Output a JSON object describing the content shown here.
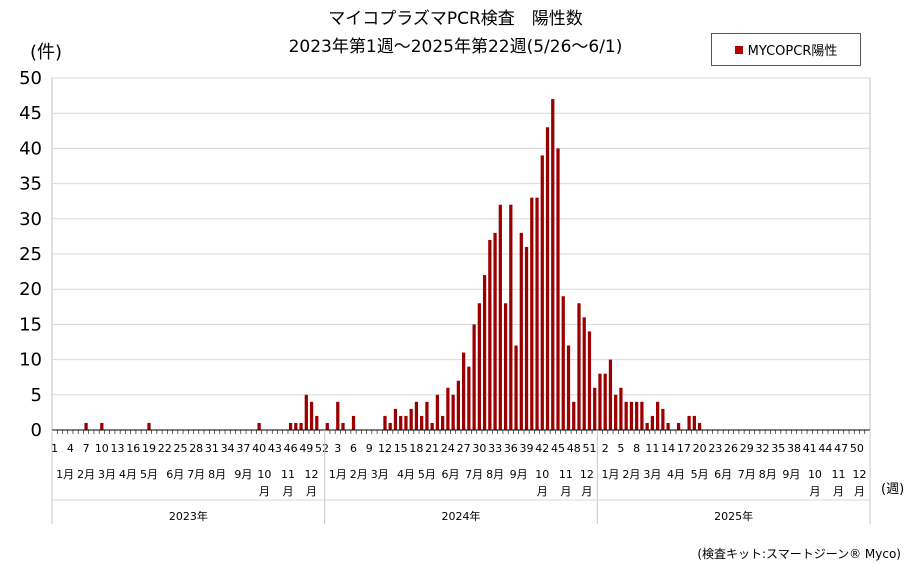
{
  "chart_data": {
    "type": "bar",
    "title": "マイコプラズマPCR検査　陽性数",
    "subtitle": "2023年第1週～2025年第22週(5/26～6/1)",
    "ylabel": "(件)",
    "xlabel": "(週)",
    "ylim": [
      0,
      50
    ],
    "yticks": [
      0,
      5,
      10,
      15,
      20,
      25,
      30,
      35,
      40,
      45,
      50
    ],
    "grid": true,
    "legend_position": "top-right",
    "series": [
      {
        "name": "MYCOPCR陽性",
        "color": "#9b0000",
        "values": [
          0,
          0,
          0,
          0,
          0,
          0,
          1,
          0,
          0,
          1,
          0,
          0,
          0,
          0,
          0,
          0,
          0,
          0,
          1,
          0,
          0,
          0,
          0,
          0,
          0,
          0,
          0,
          0,
          0,
          0,
          0,
          0,
          0,
          0,
          0,
          0,
          0,
          0,
          0,
          1,
          0,
          0,
          0,
          0,
          0,
          1,
          1,
          1,
          5,
          4,
          2,
          0,
          1,
          0,
          4,
          1,
          0,
          2,
          0,
          0,
          0,
          0,
          0,
          2,
          1,
          3,
          2,
          2,
          3,
          4,
          2,
          4,
          1,
          5,
          2,
          6,
          5,
          7,
          11,
          9,
          15,
          18,
          22,
          27,
          28,
          32,
          18,
          32,
          12,
          28,
          26,
          33,
          33,
          39,
          43,
          47,
          40,
          19,
          12,
          4,
          18,
          16,
          14,
          6,
          8,
          8,
          10,
          5,
          6,
          4,
          4,
          4,
          4,
          1,
          2,
          4,
          3,
          1,
          0,
          1,
          0,
          2,
          2,
          1,
          0,
          0,
          0,
          0,
          0,
          0,
          0,
          0,
          0,
          0,
          0,
          0,
          0,
          0,
          0,
          0,
          0,
          0,
          0,
          0,
          0,
          0,
          0,
          0,
          0,
          0,
          0,
          0,
          0,
          0,
          0,
          0,
          0,
          0,
          0,
          0,
          0,
          0,
          0,
          0,
          0,
          0,
          0,
          0,
          0,
          0,
          0,
          0,
          0,
          0,
          0,
          0
        ]
      }
    ],
    "week_ticks": [
      {
        "week": 1,
        "label": "1"
      },
      {
        "week": 4,
        "label": "4"
      },
      {
        "week": 7,
        "label": "7"
      },
      {
        "week": 10,
        "label": "10"
      },
      {
        "week": 13,
        "label": "13"
      },
      {
        "week": 16,
        "label": "16"
      },
      {
        "week": 19,
        "label": "19"
      },
      {
        "week": 22,
        "label": "22"
      },
      {
        "week": 25,
        "label": "25"
      },
      {
        "week": 28,
        "label": "28"
      },
      {
        "week": 31,
        "label": "31"
      },
      {
        "week": 34,
        "label": "34"
      },
      {
        "week": 37,
        "label": "37"
      },
      {
        "week": 40,
        "label": "40"
      },
      {
        "week": 43,
        "label": "43"
      },
      {
        "week": 46,
        "label": "46"
      },
      {
        "week": 49,
        "label": "49"
      },
      {
        "week": 52,
        "label": "52"
      },
      {
        "week": 55,
        "label": "3"
      },
      {
        "week": 58,
        "label": "6"
      },
      {
        "week": 61,
        "label": "9"
      },
      {
        "week": 64,
        "label": "12"
      },
      {
        "week": 67,
        "label": "15"
      },
      {
        "week": 70,
        "label": "18"
      },
      {
        "week": 73,
        "label": "21"
      },
      {
        "week": 76,
        "label": "24"
      },
      {
        "week": 79,
        "label": "27"
      },
      {
        "week": 82,
        "label": "30"
      },
      {
        "week": 85,
        "label": "33"
      },
      {
        "week": 88,
        "label": "36"
      },
      {
        "week": 91,
        "label": "39"
      },
      {
        "week": 94,
        "label": "42"
      },
      {
        "week": 97,
        "label": "45"
      },
      {
        "week": 100,
        "label": "48"
      },
      {
        "week": 103,
        "label": "51"
      },
      {
        "week": 106,
        "label": "2"
      },
      {
        "week": 109,
        "label": "5"
      },
      {
        "week": 112,
        "label": "8"
      },
      {
        "week": 115,
        "label": "11"
      },
      {
        "week": 118,
        "label": "14"
      },
      {
        "week": 121,
        "label": "17"
      },
      {
        "week": 124,
        "label": "20"
      },
      {
        "week": 127,
        "label": "23"
      },
      {
        "week": 130,
        "label": "26"
      },
      {
        "week": 133,
        "label": "29"
      },
      {
        "week": 136,
        "label": "32"
      },
      {
        "week": 139,
        "label": "35"
      },
      {
        "week": 142,
        "label": "38"
      },
      {
        "week": 145,
        "label": "41"
      },
      {
        "week": 148,
        "label": "44"
      },
      {
        "week": 151,
        "label": "47"
      },
      {
        "week": 154,
        "label": "50"
      }
    ],
    "month_labels": [
      {
        "week": 3,
        "label": "1月"
      },
      {
        "week": 7,
        "label": "2月"
      },
      {
        "week": 11,
        "label": "3月"
      },
      {
        "week": 15,
        "label": "4月"
      },
      {
        "week": 19,
        "label": "5月"
      },
      {
        "week": 24,
        "label": "6月"
      },
      {
        "week": 28,
        "label": "7月"
      },
      {
        "week": 32,
        "label": "8月"
      },
      {
        "week": 37,
        "label": "9月"
      },
      {
        "week": 41,
        "label": "10月"
      },
      {
        "week": 45.5,
        "label": "11月"
      },
      {
        "week": 50,
        "label": "12月"
      },
      {
        "week": 55,
        "label": "1月"
      },
      {
        "week": 59,
        "label": "2月"
      },
      {
        "week": 63,
        "label": "3月"
      },
      {
        "week": 68,
        "label": "4月"
      },
      {
        "week": 72,
        "label": "5月"
      },
      {
        "week": 76.5,
        "label": "6月"
      },
      {
        "week": 81,
        "label": "7月"
      },
      {
        "week": 85,
        "label": "8月"
      },
      {
        "week": 89.5,
        "label": "9月"
      },
      {
        "week": 94,
        "label": "10月"
      },
      {
        "week": 98.5,
        "label": "11月"
      },
      {
        "week": 102.5,
        "label": "12月"
      },
      {
        "week": 107,
        "label": "1月"
      },
      {
        "week": 111,
        "label": "2月"
      },
      {
        "week": 115,
        "label": "3月"
      },
      {
        "week": 119.5,
        "label": "4月"
      },
      {
        "week": 124,
        "label": "5月"
      },
      {
        "week": 128.5,
        "label": "6月"
      },
      {
        "week": 133,
        "label": "7月"
      },
      {
        "week": 137,
        "label": "8月"
      },
      {
        "week": 141.5,
        "label": "9月"
      },
      {
        "week": 146,
        "label": "10月"
      },
      {
        "week": 150.5,
        "label": "11月"
      },
      {
        "week": 154.5,
        "label": "12月"
      }
    ],
    "year_labels": [
      {
        "week_start": 1,
        "week_end": 52,
        "label": "2023年"
      },
      {
        "week_start": 53,
        "week_end": 104,
        "label": "2024年"
      },
      {
        "week_start": 105,
        "week_end": 156,
        "label": "2025年"
      }
    ]
  },
  "source": "(検査キット:スマートジーン® Myco)"
}
